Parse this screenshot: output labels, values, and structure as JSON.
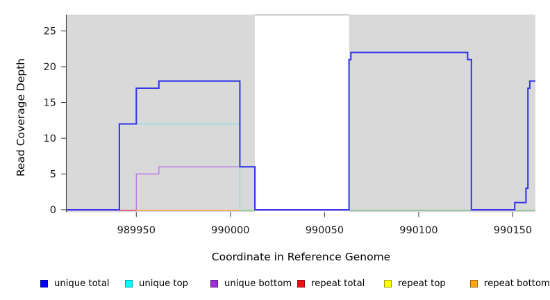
{
  "chart_data": {
    "type": "line",
    "step": true,
    "title": "",
    "xlabel": "Coordinate in Reference Genome",
    "ylabel": "Read Coverage Depth",
    "x_ticks": [
      989950,
      990000,
      990050,
      990100,
      990150
    ],
    "y_ticks": [
      0,
      5,
      10,
      15,
      20,
      25
    ],
    "x_range": [
      989913,
      990162
    ],
    "ylim": [
      0,
      27.5
    ],
    "grid": false,
    "panel_bg": "#D9D9D9",
    "axis_color": "#404040",
    "gap_region": {
      "x_start": 990013,
      "x_end": 990063,
      "fill": "#FFFFFF",
      "border_color": "#8F8F8F"
    },
    "series": [
      {
        "name": "unique total",
        "swatch_color": "#0000FF",
        "line_color": "#3538E8",
        "line_width": 2.1,
        "points": [
          [
            989913,
            0
          ],
          [
            989941,
            12
          ],
          [
            989950,
            17
          ],
          [
            989962,
            18
          ],
          [
            990005,
            6
          ],
          [
            990013,
            0
          ],
          [
            990063,
            21
          ],
          [
            990064,
            22
          ],
          [
            990126,
            21
          ],
          [
            990128,
            0
          ],
          [
            990151,
            1
          ],
          [
            990157,
            3
          ],
          [
            990158,
            17
          ],
          [
            990159,
            18
          ],
          [
            990162,
            18
          ]
        ]
      },
      {
        "name": "unique top",
        "swatch_color": "#00FFFF",
        "line_color": "#85E0E4",
        "line_width": 1.4,
        "points": [
          [
            989913,
            0
          ],
          [
            989941,
            12
          ],
          [
            990005,
            0
          ],
          [
            990162,
            0
          ]
        ]
      },
      {
        "name": "unique bottom",
        "swatch_color": "#9B30D6",
        "line_color": "#B878E8",
        "line_width": 1.4,
        "points": [
          [
            989913,
            0
          ],
          [
            989950,
            5
          ],
          [
            989962,
            6
          ],
          [
            990013,
            0
          ],
          [
            990162,
            0
          ]
        ]
      },
      {
        "name": "repeat total",
        "swatch_color": "#EE1111",
        "line_color": "#E04858",
        "line_width": 1.4,
        "points": [
          [
            989941,
            0
          ],
          [
            989950,
            0
          ]
        ]
      },
      {
        "name": "repeat top",
        "swatch_color": "#FFFF00",
        "line_color": "#E8E84A",
        "line_width": 1.4,
        "points": [
          [
            990005,
            0
          ],
          [
            990162,
            0
          ]
        ]
      },
      {
        "name": "repeat bottom",
        "swatch_color": "#FFA513",
        "line_color": "#FF9F2E",
        "line_width": 1.4,
        "points": [
          [
            989950,
            0
          ],
          [
            990005,
            0
          ]
        ]
      }
    ],
    "overlap_baseline_color": "#8CC88C",
    "overlap_baseline_segments": [
      [
        990005,
        990013
      ],
      [
        990063,
        990128
      ],
      [
        990151,
        990162
      ]
    ],
    "legend_position": "bottom"
  }
}
